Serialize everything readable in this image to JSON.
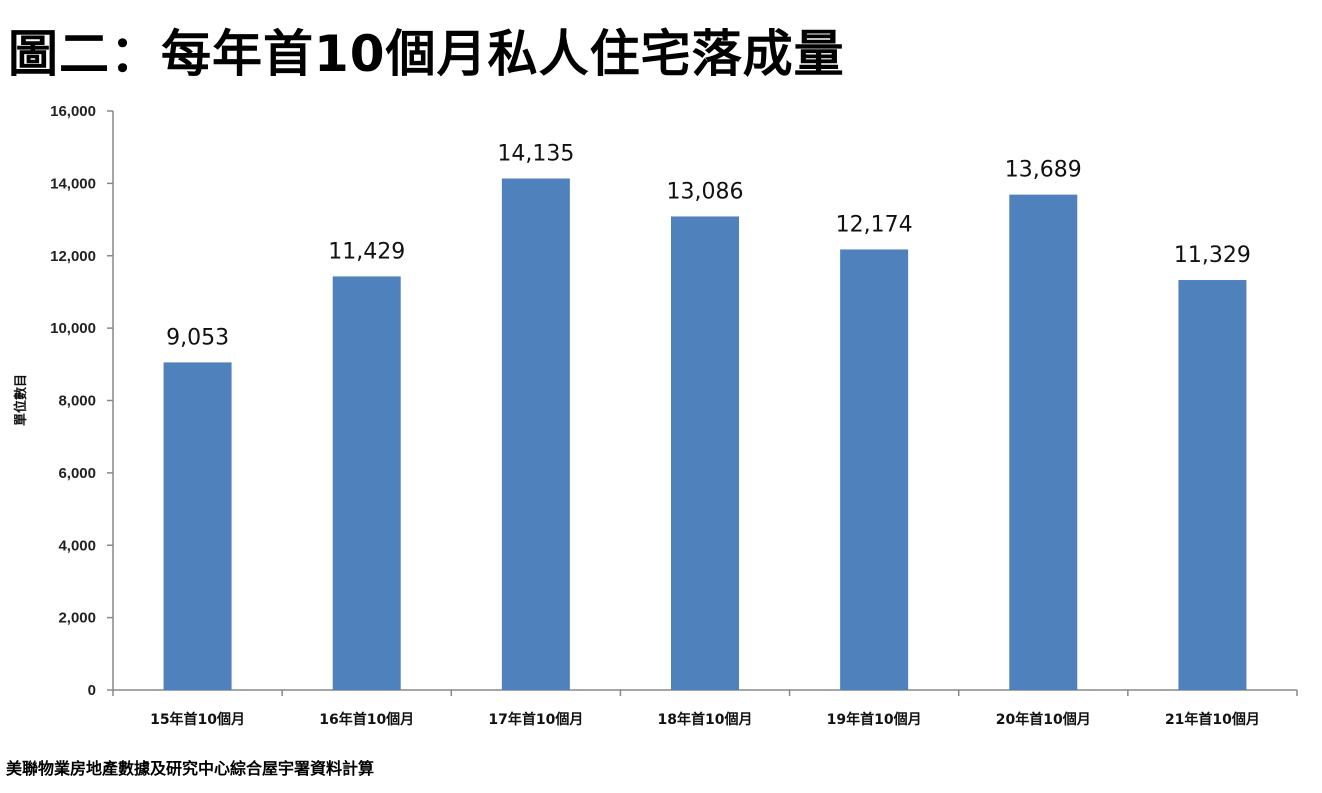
{
  "chart_data": {
    "type": "bar",
    "title": "圖二：每年首10個月私人住宅落成量",
    "xlabel": "",
    "ylabel": "單位數目",
    "ylim": [
      0,
      16000
    ],
    "yticks": [
      0,
      2000,
      4000,
      6000,
      8000,
      10000,
      12000,
      14000,
      16000
    ],
    "ytick_labels": [
      "0",
      "2,000",
      "4,000",
      "6,000",
      "8,000",
      "10,000",
      "12,000",
      "14,000",
      "16,000"
    ],
    "categories": [
      "15年首10個月",
      "16年首10個月",
      "17年首10個月",
      "18年首10個月",
      "19年首10個月",
      "20年首10個月",
      "21年首10個月"
    ],
    "values": [
      9053,
      11429,
      14135,
      13086,
      12174,
      13689,
      11329
    ],
    "data_labels": [
      "9,053",
      "11,429",
      "14,135",
      "13,086",
      "12,174",
      "13,689",
      "11,329"
    ],
    "bar_color": "#4F81BD",
    "grid": false,
    "source": "美聯物業房地產數據及研究中心綜合屋宇署資料計算"
  }
}
